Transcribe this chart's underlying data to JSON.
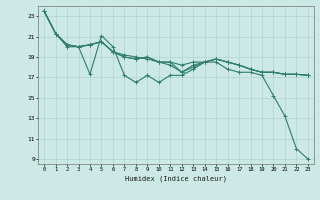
{
  "xlabel": "Humidex (Indice chaleur)",
  "bg_color": "#cce9e6",
  "grid_color": "#afd4d0",
  "line_color": "#2e7d6e",
  "xlim": [
    -0.5,
    23.5
  ],
  "ylim": [
    8.5,
    24.0
  ],
  "xticks": [
    0,
    1,
    2,
    3,
    4,
    5,
    6,
    7,
    8,
    9,
    10,
    11,
    12,
    13,
    14,
    15,
    16,
    17,
    18,
    19,
    20,
    21,
    22,
    23
  ],
  "yticks": [
    9,
    11,
    13,
    15,
    17,
    19,
    21,
    23
  ],
  "lines": [
    {
      "x": [
        0,
        1,
        2,
        3,
        4,
        5,
        6,
        7,
        8,
        9,
        10,
        11,
        12,
        13,
        14,
        15,
        16,
        17,
        18,
        19,
        20,
        21,
        22,
        23
      ],
      "y": [
        23.5,
        21.3,
        20.0,
        20.0,
        17.3,
        21.1,
        20.0,
        17.2,
        16.5,
        17.2,
        16.5,
        17.2,
        17.2,
        17.8,
        18.5,
        18.5,
        17.8,
        17.5,
        17.5,
        17.2,
        15.2,
        13.2,
        10.0,
        9.0
      ]
    },
    {
      "x": [
        0,
        1,
        2,
        3,
        4,
        5,
        6,
        7,
        8,
        9,
        10,
        11,
        12,
        13,
        14,
        15,
        16,
        17,
        18,
        19,
        20,
        21,
        22,
        23
      ],
      "y": [
        23.5,
        21.3,
        20.2,
        20.0,
        20.2,
        20.5,
        19.5,
        19.2,
        19.0,
        18.8,
        18.5,
        18.5,
        17.5,
        18.2,
        18.5,
        18.8,
        18.5,
        18.2,
        17.8,
        17.5,
        17.5,
        17.3,
        17.3,
        17.2
      ]
    },
    {
      "x": [
        0,
        1,
        2,
        3,
        4,
        5,
        6,
        7,
        8,
        9,
        10,
        11,
        12,
        13,
        14,
        15,
        16,
        17,
        18,
        19,
        20,
        21,
        22,
        23
      ],
      "y": [
        23.5,
        21.3,
        20.2,
        20.0,
        20.2,
        20.5,
        19.5,
        19.0,
        18.8,
        19.0,
        18.5,
        18.2,
        17.5,
        18.0,
        18.5,
        18.8,
        18.5,
        18.2,
        17.8,
        17.5,
        17.5,
        17.3,
        17.3,
        17.2
      ]
    },
    {
      "x": [
        0,
        1,
        2,
        3,
        4,
        5,
        6,
        7,
        8,
        9,
        10,
        11,
        12,
        13,
        14,
        15,
        16,
        17,
        18,
        19,
        20,
        21,
        22,
        23
      ],
      "y": [
        23.5,
        21.3,
        20.2,
        20.0,
        20.2,
        20.5,
        19.5,
        19.0,
        18.8,
        19.0,
        18.5,
        18.5,
        18.2,
        18.5,
        18.5,
        18.8,
        18.5,
        18.2,
        17.8,
        17.5,
        17.5,
        17.3,
        17.3,
        17.2
      ]
    }
  ]
}
